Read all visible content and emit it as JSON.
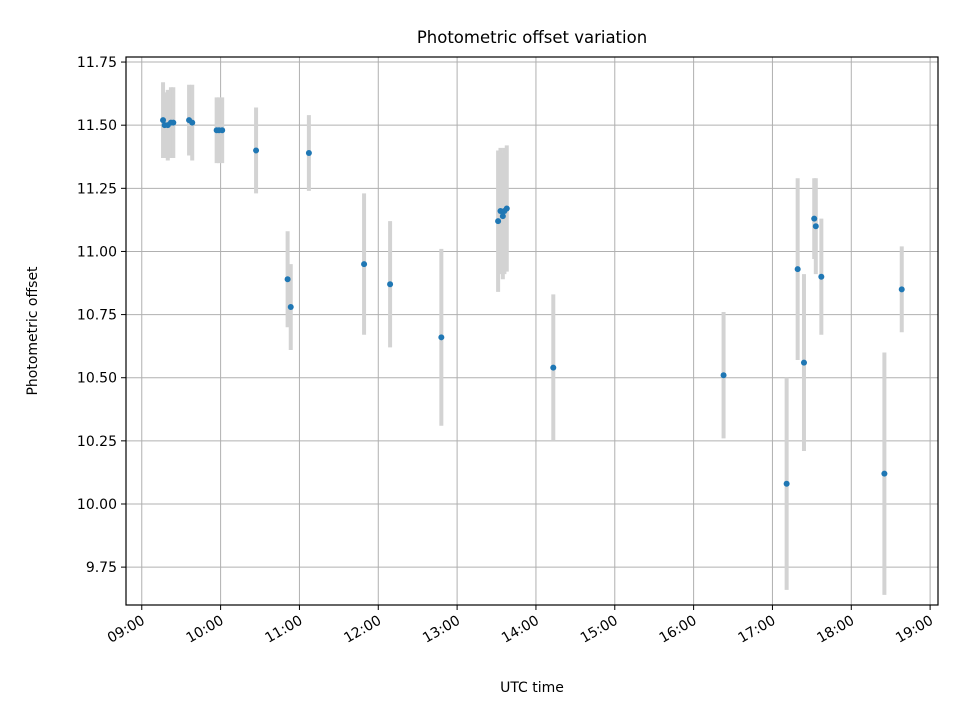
{
  "chart_data": {
    "type": "scatter",
    "title": "Photometric offset variation",
    "xlabel": "UTC time",
    "ylabel": "Photometric offset",
    "x_unit": "hours (UTC)",
    "xlim": [
      8.8,
      19.1
    ],
    "ylim": [
      9.6,
      11.77
    ],
    "xticks": [
      9,
      10,
      11,
      12,
      13,
      14,
      15,
      16,
      17,
      18,
      19
    ],
    "xtick_labels": [
      "09:00",
      "10:00",
      "11:00",
      "12:00",
      "13:00",
      "14:00",
      "15:00",
      "16:00",
      "17:00",
      "18:00",
      "19:00"
    ],
    "yticks": [
      9.75,
      10.0,
      10.25,
      10.5,
      10.75,
      11.0,
      11.25,
      11.5,
      11.75
    ],
    "ytick_labels": [
      "9.75",
      "10.00",
      "10.25",
      "10.50",
      "10.75",
      "11.00",
      "11.25",
      "11.50",
      "11.75"
    ],
    "grid": true,
    "marker_color": "#1f77b4",
    "errorbar_color": "#d3d3d3",
    "points": [
      {
        "x": 9.27,
        "y": 11.52,
        "err": 0.15
      },
      {
        "x": 9.29,
        "y": 11.5,
        "err": 0.13
      },
      {
        "x": 9.33,
        "y": 11.5,
        "err": 0.14
      },
      {
        "x": 9.37,
        "y": 11.51,
        "err": 0.14
      },
      {
        "x": 9.4,
        "y": 11.51,
        "err": 0.14
      },
      {
        "x": 9.6,
        "y": 11.52,
        "err": 0.14
      },
      {
        "x": 9.64,
        "y": 11.51,
        "err": 0.15
      },
      {
        "x": 9.95,
        "y": 11.48,
        "err": 0.13
      },
      {
        "x": 9.98,
        "y": 11.48,
        "err": 0.13
      },
      {
        "x": 10.02,
        "y": 11.48,
        "err": 0.13
      },
      {
        "x": 10.45,
        "y": 11.4,
        "err": 0.17
      },
      {
        "x": 10.85,
        "y": 10.89,
        "err": 0.19
      },
      {
        "x": 10.89,
        "y": 10.78,
        "err": 0.17
      },
      {
        "x": 11.12,
        "y": 11.39,
        "err": 0.15
      },
      {
        "x": 11.82,
        "y": 10.95,
        "err": 0.28
      },
      {
        "x": 12.15,
        "y": 10.87,
        "err": 0.25
      },
      {
        "x": 12.8,
        "y": 10.66,
        "err": 0.35
      },
      {
        "x": 13.52,
        "y": 11.12,
        "err": 0.28
      },
      {
        "x": 13.55,
        "y": 11.16,
        "err": 0.25
      },
      {
        "x": 13.58,
        "y": 11.14,
        "err": 0.25
      },
      {
        "x": 13.6,
        "y": 11.16,
        "err": 0.25
      },
      {
        "x": 13.63,
        "y": 11.17,
        "err": 0.25
      },
      {
        "x": 14.22,
        "y": 10.54,
        "err": 0.29
      },
      {
        "x": 16.38,
        "y": 10.51,
        "err": 0.25
      },
      {
        "x": 17.18,
        "y": 10.08,
        "err": 0.42
      },
      {
        "x": 17.32,
        "y": 10.93,
        "err": 0.36
      },
      {
        "x": 17.4,
        "y": 10.56,
        "err": 0.35
      },
      {
        "x": 17.53,
        "y": 11.13,
        "err": 0.16
      },
      {
        "x": 17.55,
        "y": 11.1,
        "err": 0.19
      },
      {
        "x": 17.62,
        "y": 10.9,
        "err": 0.23
      },
      {
        "x": 18.42,
        "y": 10.12,
        "err": 0.48
      },
      {
        "x": 18.64,
        "y": 10.85,
        "err": 0.17
      }
    ]
  }
}
